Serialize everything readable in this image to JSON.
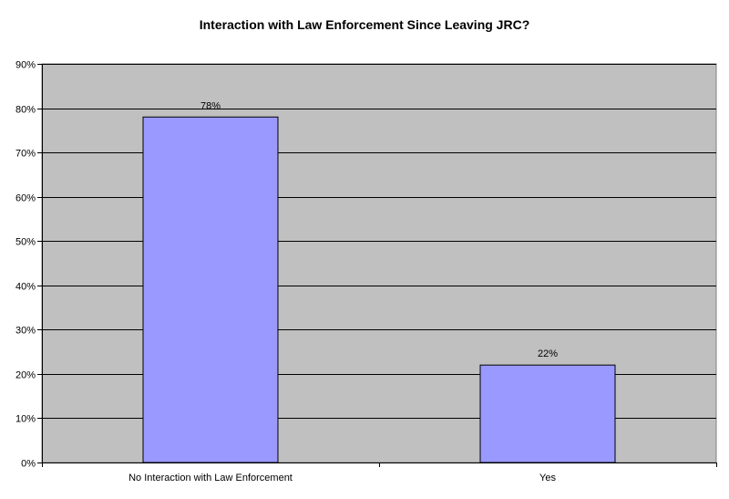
{
  "chart_data": {
    "type": "bar",
    "title": "Interaction with Law Enforcement Since Leaving JRC?",
    "xlabel": "",
    "ylabel": "",
    "categories": [
      "No Interaction with Law Enforcement",
      "Yes"
    ],
    "values": [
      78,
      22
    ],
    "data_labels": [
      "78%",
      "22%"
    ],
    "ylim": [
      0,
      90
    ],
    "y_ticks": [
      0,
      10,
      20,
      30,
      40,
      50,
      60,
      70,
      80,
      90
    ],
    "y_tick_labels": [
      "0%",
      "10%",
      "20%",
      "30%",
      "40%",
      "50%",
      "60%",
      "70%",
      "80%",
      "90%"
    ],
    "grid": true,
    "legend": "none",
    "colors": {
      "plot_background": "#c0c0c0",
      "bar_fill": "#9999ff",
      "bar_stroke": "#000000",
      "gridline": "#000000"
    }
  }
}
